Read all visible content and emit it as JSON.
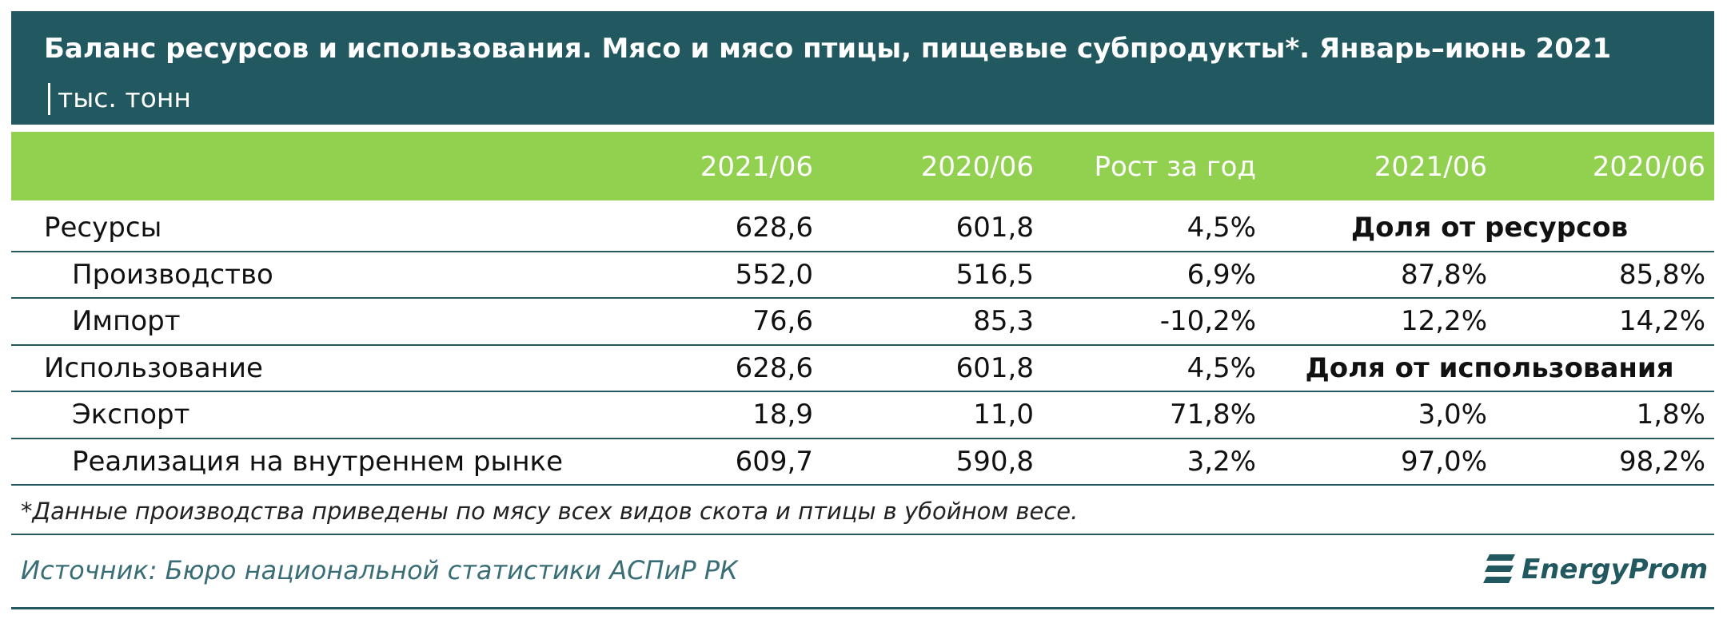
{
  "header": {
    "title": "Баланс ресурсов и использования. Мясо и мясо птицы, пищевые субпродукты*. Январь–июнь 2021",
    "unit": "тыс. тонн"
  },
  "table": {
    "columns": [
      "2021/06",
      "2020/06",
      "Рост за год",
      "2021/06",
      "2020/06"
    ],
    "rows": [
      {
        "label": "Ресурсы",
        "cells": [
          "628,6",
          "601,8",
          "4,5%"
        ],
        "share_label": "Доля от ресурсов"
      },
      {
        "label": "Производство",
        "cells": [
          "552,0",
          "516,5",
          "6,9%",
          "87,8%",
          "85,8%"
        ]
      },
      {
        "label": "Импорт",
        "cells": [
          "76,6",
          "85,3",
          "-10,2%",
          "12,2%",
          "14,2%"
        ]
      },
      {
        "label": "Использование",
        "cells": [
          "628,6",
          "601,8",
          "4,5%"
        ],
        "share_label": "Доля от использования"
      },
      {
        "label": "Экспорт",
        "cells": [
          "18,9",
          "11,0",
          "71,8%",
          "3,0%",
          "1,8%"
        ]
      },
      {
        "label": "Реализация на внутреннем рынке",
        "cells": [
          "609,7",
          "590,8",
          "3,2%",
          "97,0%",
          "98,2%"
        ]
      }
    ]
  },
  "footer": {
    "note": "*Данные производства приведены по мясу всех видов скота и птицы в убойном весе.",
    "source": "Источник: Бюро национальной статистики АСПиР РК",
    "logo": "EnergyProm"
  }
}
